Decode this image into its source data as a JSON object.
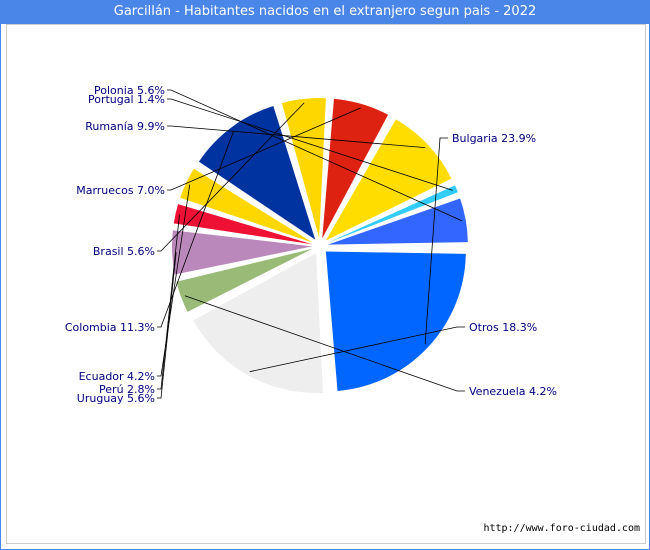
{
  "chart_data": {
    "type": "pie",
    "title": "Garcillán - Habitantes nacidos en el extranjero segun pais - 2022",
    "slices": [
      {
        "name": "Bulgaria",
        "value": 23.9,
        "label": "Bulgaria 23.9%",
        "color": "#0066ff"
      },
      {
        "name": "Otros",
        "value": 18.3,
        "label": "Otros 18.3%",
        "color": "#eeeeee"
      },
      {
        "name": "Venezuela",
        "value": 4.2,
        "label": "Venezuela 4.2%",
        "color": "#99bb77"
      },
      {
        "name": "Uruguay",
        "value": 5.6,
        "label": "Uruguay 5.6%",
        "color": "#bb88bb"
      },
      {
        "name": "Perú",
        "value": 2.8,
        "label": "Perú 2.8%",
        "color": "#ee1133"
      },
      {
        "name": "Ecuador",
        "value": 4.2,
        "label": "Ecuador 4.2%",
        "color": "#ffd700"
      },
      {
        "name": "Colombia",
        "value": 11.3,
        "label": "Colombia 11.3%",
        "color": "#0033a0"
      },
      {
        "name": "Brasil",
        "value": 5.6,
        "label": "Brasil 5.6%",
        "color": "#ffd700"
      },
      {
        "name": "Marruecos",
        "value": 7.0,
        "label": "Marruecos 7.0%",
        "color": "#dd2211"
      },
      {
        "name": "Rumanía",
        "value": 9.9,
        "label": "Rumanía 9.9%",
        "color": "#ffdd00"
      },
      {
        "name": "Portugal",
        "value": 1.4,
        "label": "Portugal 1.4%",
        "color": "#33ccff"
      },
      {
        "name": "Polonia",
        "value": 5.6,
        "label": "Polonia 5.6%",
        "color": "#3366ff"
      }
    ]
  },
  "footer": {
    "source": "http://www.foro-ciudad.com"
  }
}
